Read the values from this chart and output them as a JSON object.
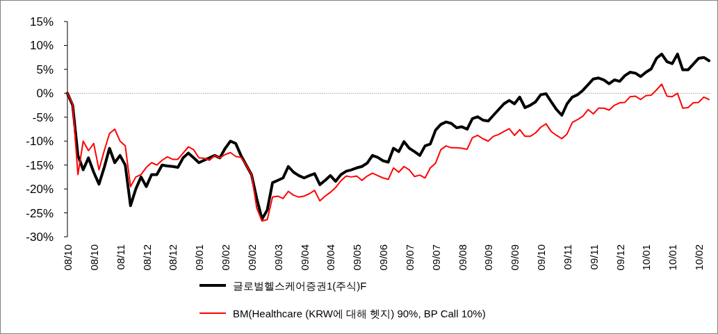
{
  "chart_data": {
    "type": "line",
    "categories": [
      "08/10",
      null,
      null,
      null,
      null,
      "08/10",
      null,
      null,
      null,
      null,
      "08/11",
      null,
      null,
      null,
      null,
      "08/12",
      null,
      null,
      null,
      null,
      "08/12",
      null,
      null,
      null,
      null,
      "09/01",
      null,
      null,
      null,
      null,
      "09/02",
      null,
      null,
      null,
      null,
      "09/02",
      null,
      null,
      null,
      null,
      "09/03",
      null,
      null,
      null,
      null,
      "09/04",
      null,
      null,
      null,
      null,
      "09/04",
      null,
      null,
      null,
      null,
      "09/05",
      null,
      null,
      null,
      null,
      "09/06",
      null,
      null,
      null,
      null,
      "09/07",
      null,
      null,
      null,
      null,
      "09/07",
      null,
      null,
      null,
      null,
      "09/08",
      null,
      null,
      null,
      null,
      "09/09",
      null,
      null,
      null,
      null,
      "09/09",
      null,
      null,
      null,
      null,
      "09/10",
      null,
      null,
      null,
      null,
      "09/11",
      null,
      null,
      null,
      null,
      "09/11",
      null,
      null,
      null,
      null,
      "09/12",
      null,
      null,
      null,
      null,
      "10/01",
      null,
      null,
      null,
      null,
      "10/01",
      null,
      null,
      null,
      null,
      "10/02",
      null,
      null
    ],
    "series": [
      {
        "name": "글로벌헬스케어증권1(주식)F",
        "color": "#000000",
        "values": [
          0,
          -2.5,
          -13,
          -16,
          -13.5,
          -16.5,
          -19,
          -15.5,
          -11.5,
          -14.5,
          -13,
          -15,
          -23.5,
          -20,
          -17.5,
          -19.5,
          -17,
          -17,
          -15,
          -15.2,
          -15.3,
          -15.5,
          -13.5,
          -12.5,
          -13.5,
          -14.5,
          -14,
          -13.5,
          -13,
          -13.5,
          -11.5,
          -10,
          -10.5,
          -13,
          -15,
          -17,
          -22,
          -26.3,
          -24.4,
          -18.7,
          -18.2,
          -17.7,
          -15.3,
          -16.5,
          -17.2,
          -17.7,
          -17.2,
          -16.8,
          -19.1,
          -18.2,
          -17.2,
          -18.4,
          -17,
          -16.3,
          -16,
          -15.6,
          -15.3,
          -14.6,
          -13,
          -13.4,
          -14.1,
          -14.4,
          -11.5,
          -12.2,
          -10.1,
          -11.5,
          -12.2,
          -13,
          -11,
          -10.6,
          -7.7,
          -6.5,
          -6,
          -6.3,
          -7.2,
          -7,
          -7.5,
          -5.3,
          -4.9,
          -5.6,
          -5.8,
          -4.6,
          -3.4,
          -2.2,
          -1.5,
          -2.2,
          -0.8,
          -3,
          -2.5,
          -1.8,
          -0.3,
          -0.1,
          -1.8,
          -3.4,
          -4.6,
          -2.2,
          -0.8,
          -0.3,
          0.6,
          1.8,
          3,
          3.2,
          2.8,
          2,
          2.8,
          2.5,
          3.7,
          4.4,
          4.2,
          3.5,
          4.4,
          5.1,
          7.3,
          8.2,
          6.6,
          6.2,
          8.2,
          4.9,
          4.9,
          6.1,
          7.3,
          7.5,
          6.8
        ]
      },
      {
        "name": "BM(Healthcare (KRW에 대해 헷지) 90%, BP Call 10%)",
        "color": "#ff0000",
        "values": [
          0,
          -2.3,
          -17,
          -10,
          -12,
          -10.5,
          -16,
          -12,
          -8.4,
          -7.5,
          -10,
          -11,
          -19.5,
          -17.5,
          -17,
          -15.5,
          -14.5,
          -15,
          -14,
          -13.3,
          -13.8,
          -13.8,
          -12.5,
          -11.2,
          -11.8,
          -13.5,
          -13.6,
          -14,
          -13,
          -13.5,
          -12.8,
          -12.4,
          -13.2,
          -13.4,
          -15,
          -17,
          -24,
          -26.7,
          -26.4,
          -21.7,
          -21.5,
          -22,
          -20.5,
          -21.3,
          -21.7,
          -21.5,
          -21,
          -20.3,
          -22.5,
          -21.5,
          -20.7,
          -19.7,
          -18.3,
          -17.3,
          -17.5,
          -17.3,
          -18.2,
          -17.3,
          -16.7,
          -17.2,
          -17.7,
          -18,
          -15.6,
          -16.5,
          -15.3,
          -16,
          -17.4,
          -17.1,
          -17.7,
          -15.6,
          -14.6,
          -11.8,
          -11,
          -11.4,
          -11.4,
          -11.5,
          -11.7,
          -9.3,
          -8.8,
          -9.5,
          -10,
          -9,
          -8.6,
          -8,
          -7.4,
          -8.8,
          -7.6,
          -9,
          -9,
          -8.3,
          -7.1,
          -6.4,
          -8,
          -8.8,
          -9.5,
          -8.5,
          -6.1,
          -5.5,
          -4.8,
          -3.4,
          -4.3,
          -3.1,
          -3.1,
          -3.5,
          -2.5,
          -2,
          -1.9,
          -0.7,
          -0.6,
          -1.3,
          -0.5,
          -0.4,
          0.7,
          1.9,
          -0.6,
          -0.7,
          0,
          -3.1,
          -3,
          -2,
          -1.9,
          -0.8,
          -1.3
        ]
      }
    ],
    "ylim": [
      -30,
      15
    ],
    "yticks": [
      {
        "value": -30,
        "label": "-30%"
      },
      {
        "value": -25,
        "label": "-25%"
      },
      {
        "value": -20,
        "label": "-20%"
      },
      {
        "value": -15,
        "label": "-15%"
      },
      {
        "value": -10,
        "label": "-10%"
      },
      {
        "value": -5,
        "label": "-5%"
      },
      {
        "value": 0,
        "label": "0%"
      },
      {
        "value": 5,
        "label": "5%"
      },
      {
        "value": 10,
        "label": "10%"
      },
      {
        "value": 15,
        "label": "15%"
      }
    ],
    "ref_lines": [
      {
        "axis": "y",
        "value": 0,
        "color": "#808080",
        "line_style": "dotted"
      }
    ],
    "legend": "bottom"
  }
}
